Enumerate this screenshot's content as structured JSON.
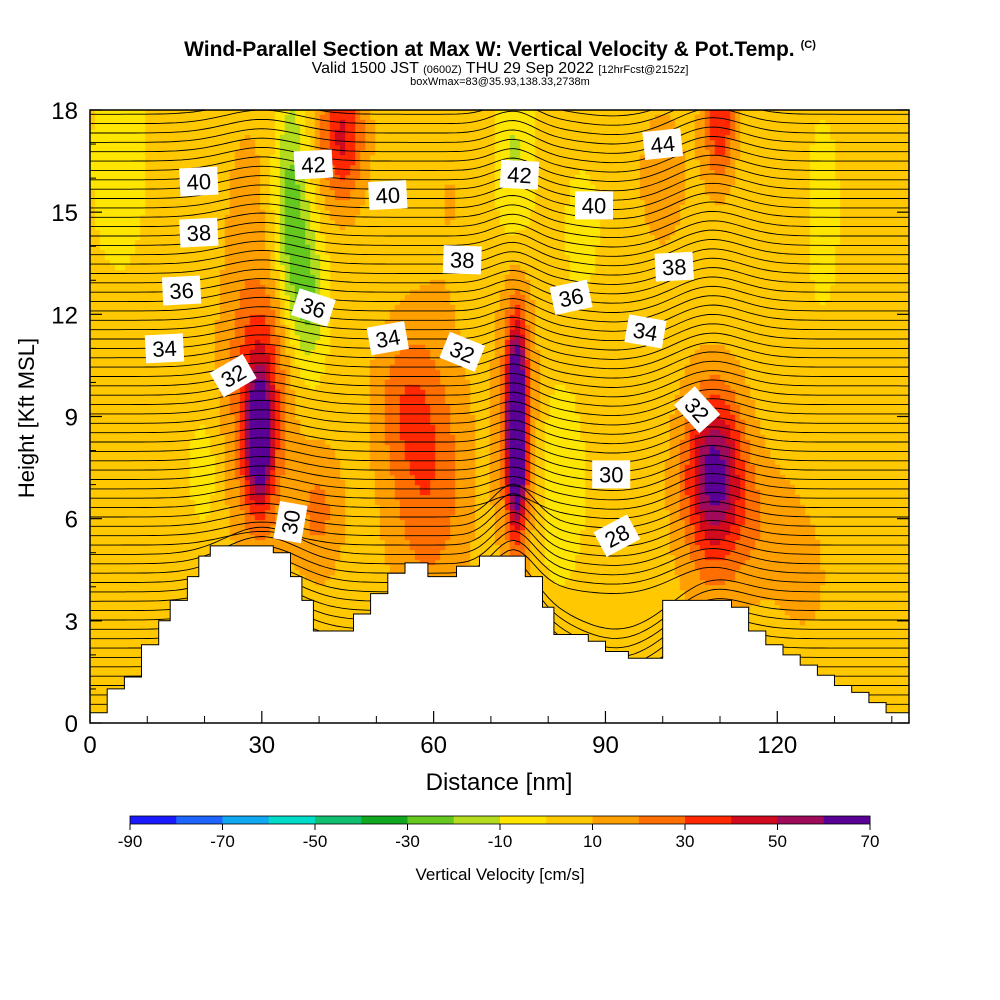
{
  "header": {
    "title": "Wind-Parallel Section at Max W: Vertical Velocity & Pot.Temp.",
    "copyright": "(C)",
    "valid_prefix": "Valid 1500 JST",
    "valid_utc": "(0600Z)",
    "valid_date": "THU 29 Sep 2022",
    "forecast": "[12hrFcst@2152z]",
    "boxwmax": "boxWmax=83@35.93,138.33,2738m"
  },
  "colorbar": {
    "label": "Vertical Velocity [cm/s]",
    "tick_labels": [
      "-90",
      "-70",
      "-50",
      "-30",
      "-10",
      "10",
      "30",
      "50",
      "70"
    ],
    "colors": [
      "#1a1aff",
      "#1e64ff",
      "#10a8f0",
      "#00dcc8",
      "#10c070",
      "#10a820",
      "#64c81e",
      "#b4dc1e",
      "#ffe600",
      "#ffc800",
      "#ffa000",
      "#ff6e00",
      "#ff2800",
      "#d20a1e",
      "#a00a5a",
      "#5a0096"
    ]
  },
  "chart_data": {
    "type": "heatmap",
    "xlabel": "Distance [nm]",
    "ylabel": "Height [Kft MSL]",
    "xlim": [
      0,
      143
    ],
    "ylim": [
      0,
      18
    ],
    "x_ticks": [
      0,
      30,
      60,
      90,
      120
    ],
    "y_ticks": [
      0,
      3,
      6,
      9,
      12,
      15,
      18
    ],
    "field": "Vertical Velocity [cm/s]",
    "color_levels": [
      -90,
      -80,
      -70,
      -60,
      -50,
      -40,
      -30,
      -20,
      -10,
      0,
      10,
      20,
      30,
      40,
      50,
      60,
      70
    ],
    "contour_field": "Pot.Temp.",
    "contour_labels": [
      {
        "text": "40",
        "x": 19,
        "y": 15.9,
        "angle": -3
      },
      {
        "text": "42",
        "x": 39,
        "y": 16.4,
        "angle": -3
      },
      {
        "text": "40",
        "x": 52,
        "y": 15.5,
        "angle": -3
      },
      {
        "text": "42",
        "x": 75,
        "y": 16.1,
        "angle": 3
      },
      {
        "text": "44",
        "x": 100,
        "y": 17.0,
        "angle": -6
      },
      {
        "text": "40",
        "x": 88,
        "y": 15.2,
        "angle": 0
      },
      {
        "text": "38",
        "x": 19,
        "y": 14.4,
        "angle": -3
      },
      {
        "text": "38",
        "x": 65,
        "y": 13.6,
        "angle": 2
      },
      {
        "text": "38",
        "x": 102,
        "y": 13.4,
        "angle": -3
      },
      {
        "text": "36",
        "x": 16,
        "y": 12.7,
        "angle": -3
      },
      {
        "text": "36",
        "x": 39,
        "y": 12.2,
        "angle": 18
      },
      {
        "text": "36",
        "x": 84,
        "y": 12.5,
        "angle": -12
      },
      {
        "text": "34",
        "x": 13,
        "y": 11.0,
        "angle": -3
      },
      {
        "text": "34",
        "x": 52,
        "y": 11.3,
        "angle": -10
      },
      {
        "text": "34",
        "x": 97,
        "y": 11.5,
        "angle": 10
      },
      {
        "text": "32",
        "x": 25,
        "y": 10.2,
        "angle": -30
      },
      {
        "text": "32",
        "x": 65,
        "y": 10.9,
        "angle": 22
      },
      {
        "text": "32",
        "x": 106,
        "y": 9.2,
        "angle": 48
      },
      {
        "text": "30",
        "x": 35,
        "y": 5.9,
        "angle": -80
      },
      {
        "text": "30",
        "x": 91,
        "y": 7.3,
        "angle": 0
      },
      {
        "text": "28",
        "x": 92,
        "y": 5.5,
        "angle": -28
      }
    ]
  }
}
